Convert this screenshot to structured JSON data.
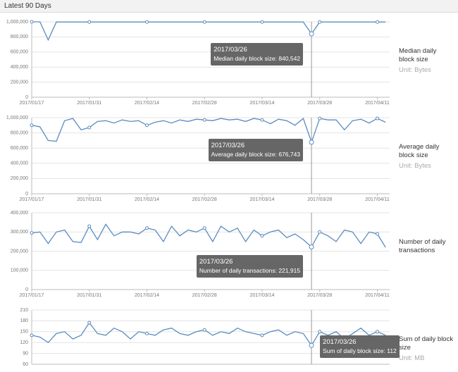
{
  "header": {
    "title": "Latest 90 Days"
  },
  "chart_data": [
    {
      "type": "line",
      "title": "Median daily block size",
      "subtitle": "Unit: Bytes",
      "color": "#5b8cc0",
      "grid": true,
      "x": [
        "2017/01/17",
        "2017/01/19",
        "2017/01/21",
        "2017/01/23",
        "2017/01/25",
        "2017/01/27",
        "2017/01/29",
        "2017/01/31",
        "2017/02/02",
        "2017/02/04",
        "2017/02/06",
        "2017/02/08",
        "2017/02/10",
        "2017/02/12",
        "2017/02/14",
        "2017/02/16",
        "2017/02/18",
        "2017/02/20",
        "2017/02/22",
        "2017/02/24",
        "2017/02/26",
        "2017/02/28",
        "2017/03/02",
        "2017/03/04",
        "2017/03/06",
        "2017/03/08",
        "2017/03/10",
        "2017/03/12",
        "2017/03/14",
        "2017/03/16",
        "2017/03/18",
        "2017/03/20",
        "2017/03/22",
        "2017/03/24",
        "2017/03/26",
        "2017/03/28",
        "2017/03/30",
        "2017/04/01",
        "2017/04/03",
        "2017/04/05",
        "2017/04/07",
        "2017/04/09",
        "2017/04/11",
        "2017/04/13"
      ],
      "values": [
        1000000,
        1000000,
        760000,
        998000,
        998000,
        998000,
        998000,
        998000,
        998000,
        998000,
        998000,
        998000,
        998000,
        998000,
        998000,
        998000,
        998000,
        998000,
        998000,
        998000,
        998000,
        998000,
        998000,
        998000,
        998000,
        998000,
        998000,
        998000,
        998000,
        998000,
        998000,
        998000,
        998000,
        998000,
        840542,
        998000,
        998000,
        998000,
        998000,
        998000,
        998000,
        998000,
        998000,
        998000
      ],
      "xlim": [
        "2017/01/17",
        "2017/04/14"
      ],
      "xticks": [
        "2017/01/17",
        "2017/01/31",
        "2017/02/14",
        "2017/02/28",
        "2017/03/14",
        "2017/03/28",
        "2017/04/11"
      ],
      "ylim": [
        0,
        1000000
      ],
      "yticks": [
        0,
        {
          "value": 200000,
          "label": "200,000"
        },
        {
          "value": 400000,
          "label": "400,000"
        },
        {
          "value": 600000,
          "label": "600,000"
        },
        {
          "value": 800000,
          "label": "800,000"
        },
        {
          "value": 1000000,
          "label": "1,000,000"
        }
      ],
      "tooltip": {
        "title": "2017/03/26",
        "label": "Median daily block size: 840,542"
      }
    },
    {
      "type": "line",
      "title": "Average daily block size",
      "subtitle": "Unit: Bytes",
      "color": "#5b8cc0",
      "grid": true,
      "x": [
        "2017/01/17",
        "2017/01/19",
        "2017/01/21",
        "2017/01/23",
        "2017/01/25",
        "2017/01/27",
        "2017/01/29",
        "2017/01/31",
        "2017/02/02",
        "2017/02/04",
        "2017/02/06",
        "2017/02/08",
        "2017/02/10",
        "2017/02/12",
        "2017/02/14",
        "2017/02/16",
        "2017/02/18",
        "2017/02/20",
        "2017/02/22",
        "2017/02/24",
        "2017/02/26",
        "2017/02/28",
        "2017/03/02",
        "2017/03/04",
        "2017/03/06",
        "2017/03/08",
        "2017/03/10",
        "2017/03/12",
        "2017/03/14",
        "2017/03/16",
        "2017/03/18",
        "2017/03/20",
        "2017/03/22",
        "2017/03/24",
        "2017/03/26",
        "2017/03/28",
        "2017/03/30",
        "2017/04/01",
        "2017/04/03",
        "2017/04/05",
        "2017/04/07",
        "2017/04/09",
        "2017/04/11",
        "2017/04/13"
      ],
      "values": [
        900000,
        880000,
        700000,
        690000,
        960000,
        990000,
        840000,
        870000,
        950000,
        960000,
        930000,
        970000,
        950000,
        960000,
        900000,
        940000,
        960000,
        930000,
        970000,
        950000,
        980000,
        970000,
        960000,
        990000,
        970000,
        980000,
        950000,
        990000,
        970000,
        920000,
        980000,
        960000,
        900000,
        990000,
        676743,
        990000,
        970000,
        970000,
        840000,
        960000,
        980000,
        930000,
        990000,
        940000
      ],
      "xlim": [
        "2017/01/17",
        "2017/04/14"
      ],
      "xticks": [
        "2017/01/17",
        "2017/01/31",
        "2017/02/14",
        "2017/02/28",
        "2017/03/14",
        "2017/03/28",
        "2017/04/11"
      ],
      "ylim": [
        0,
        1000000
      ],
      "yticks": [
        0,
        {
          "value": 200000,
          "label": "200,000"
        },
        {
          "value": 400000,
          "label": "400,000"
        },
        {
          "value": 600000,
          "label": "600,000"
        },
        {
          "value": 800000,
          "label": "800,000"
        },
        {
          "value": 1000000,
          "label": "1,000,000"
        }
      ],
      "tooltip": {
        "title": "2017/03/26",
        "label": "Average daily block size: 676,743"
      }
    },
    {
      "type": "line",
      "title": "Number of daily transactions",
      "color": "#5b8cc0",
      "grid": true,
      "x": [
        "2017/01/17",
        "2017/01/19",
        "2017/01/21",
        "2017/01/23",
        "2017/01/25",
        "2017/01/27",
        "2017/01/29",
        "2017/01/31",
        "2017/02/02",
        "2017/02/04",
        "2017/02/06",
        "2017/02/08",
        "2017/02/10",
        "2017/02/12",
        "2017/02/14",
        "2017/02/16",
        "2017/02/18",
        "2017/02/20",
        "2017/02/22",
        "2017/02/24",
        "2017/02/26",
        "2017/02/28",
        "2017/03/02",
        "2017/03/04",
        "2017/03/06",
        "2017/03/08",
        "2017/03/10",
        "2017/03/12",
        "2017/03/14",
        "2017/03/16",
        "2017/03/18",
        "2017/03/20",
        "2017/03/22",
        "2017/03/24",
        "2017/03/26",
        "2017/03/28",
        "2017/03/30",
        "2017/04/01",
        "2017/04/03",
        "2017/04/05",
        "2017/04/07",
        "2017/04/09",
        "2017/04/11",
        "2017/04/13"
      ],
      "values": [
        295000,
        300000,
        240000,
        300000,
        310000,
        250000,
        245000,
        330000,
        260000,
        340000,
        280000,
        300000,
        300000,
        290000,
        320000,
        310000,
        250000,
        330000,
        280000,
        310000,
        300000,
        320000,
        250000,
        330000,
        300000,
        320000,
        250000,
        310000,
        280000,
        300000,
        310000,
        270000,
        290000,
        260000,
        221915,
        300000,
        280000,
        250000,
        310000,
        300000,
        240000,
        300000,
        290000,
        220000
      ],
      "xlim": [
        "2017/01/17",
        "2017/04/14"
      ],
      "xticks": [
        "2017/01/17",
        "2017/01/31",
        "2017/02/14",
        "2017/02/28",
        "2017/03/14",
        "2017/03/28",
        "2017/04/11"
      ],
      "ylim": [
        0,
        400000
      ],
      "yticks": [
        0,
        {
          "value": 100000,
          "label": "100,000"
        },
        {
          "value": 200000,
          "label": "200,000"
        },
        {
          "value": 300000,
          "label": "300,000"
        },
        {
          "value": 400000,
          "label": "400,000"
        }
      ],
      "tooltip": {
        "title": "2017/03/26",
        "label": "Number of daily transactions: 221,915"
      }
    },
    {
      "type": "line",
      "title": "Sum of daily block size",
      "subtitle": "Unit: MB",
      "color": "#5b8cc0",
      "grid": true,
      "x": [
        "2017/01/17",
        "2017/01/19",
        "2017/01/21",
        "2017/01/23",
        "2017/01/25",
        "2017/01/27",
        "2017/01/29",
        "2017/01/31",
        "2017/02/02",
        "2017/02/04",
        "2017/02/06",
        "2017/02/08",
        "2017/02/10",
        "2017/02/12",
        "2017/02/14",
        "2017/02/16",
        "2017/02/18",
        "2017/02/20",
        "2017/02/22",
        "2017/02/24",
        "2017/02/26",
        "2017/02/28",
        "2017/03/02",
        "2017/03/04",
        "2017/03/06",
        "2017/03/08",
        "2017/03/10",
        "2017/03/12",
        "2017/03/14",
        "2017/03/16",
        "2017/03/18",
        "2017/03/20",
        "2017/03/22",
        "2017/03/24",
        "2017/03/26",
        "2017/03/28",
        "2017/03/30",
        "2017/04/01",
        "2017/04/03",
        "2017/04/05",
        "2017/04/07",
        "2017/04/09",
        "2017/04/11",
        "2017/04/13"
      ],
      "values": [
        140,
        135,
        120,
        145,
        150,
        130,
        140,
        175,
        145,
        140,
        160,
        150,
        130,
        150,
        145,
        140,
        155,
        160,
        145,
        140,
        150,
        155,
        140,
        150,
        145,
        160,
        150,
        145,
        140,
        150,
        155,
        140,
        150,
        145,
        112,
        150,
        140,
        150,
        130,
        145,
        160,
        140,
        150,
        140
      ],
      "xlim": [
        "2017/01/17",
        "2017/04/14"
      ],
      "ylim": [
        60,
        210
      ],
      "yticks": [
        60,
        90,
        120,
        150,
        180,
        210
      ],
      "tooltip": {
        "title": "2017/03/26",
        "label": "Sum of daily block size: 112"
      }
    }
  ]
}
